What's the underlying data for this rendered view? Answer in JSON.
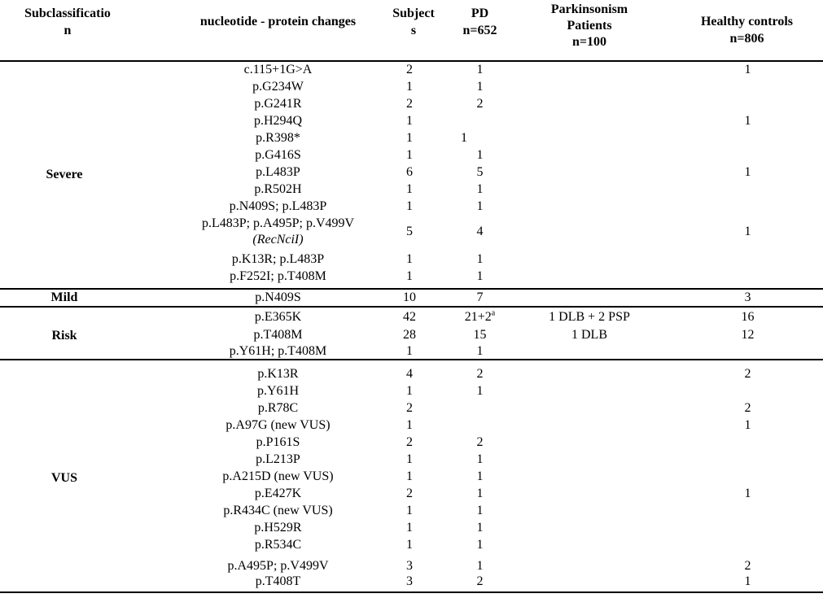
{
  "header": {
    "subclass": "Subclassificatio n",
    "subclass_l1": "Subclassificatio",
    "subclass_l2": "n",
    "mutation": "nucleotide - protein changes",
    "subjects_l1": "Subject",
    "subjects_l2": "s",
    "pd_l1": "PD",
    "pd_l2": "n=652",
    "park_l1": "Parkinsonism",
    "park_l2": "Patients",
    "park_l3": "n=100",
    "hc_l1": "Healthy controls",
    "hc_l2": "n=806"
  },
  "groups": {
    "severe": {
      "label": "Severe",
      "rows": [
        {
          "mutation": "c.115+1G>A",
          "subjects": "2",
          "pd": "1",
          "park": "",
          "hc": "1"
        },
        {
          "mutation": "p.G234W",
          "subjects": "1",
          "pd": "1",
          "park": "",
          "hc": ""
        },
        {
          "mutation": "p.G241R",
          "subjects": "2",
          "pd": "2",
          "park": "",
          "hc": ""
        },
        {
          "mutation": "p.H294Q",
          "subjects": "1",
          "pd": "",
          "park": "",
          "hc": "1"
        },
        {
          "mutation": "p.R398*",
          "subjects": "1",
          "pd": "1",
          "park": "",
          "hc": ""
        },
        {
          "mutation": "p.G416S",
          "subjects": "1",
          "pd": "1",
          "park": "",
          "hc": ""
        },
        {
          "mutation": "p.L483P",
          "subjects": "6",
          "pd": "5",
          "park": "",
          "hc": "1"
        },
        {
          "mutation": "p.R502H",
          "subjects": "1",
          "pd": "1",
          "park": "",
          "hc": ""
        },
        {
          "mutation": "p.N409S; p.L483P",
          "subjects": "1",
          "pd": "1",
          "park": "",
          "hc": ""
        },
        {
          "mutation_l1": "p.L483P; p.A495P; p.V499V",
          "mutation_l2": "(RecNciI)",
          "subjects": "5",
          "pd": "4",
          "park": "",
          "hc": "1"
        },
        {
          "mutation": "p.K13R; p.L483P",
          "subjects": "1",
          "pd": "1",
          "park": "",
          "hc": ""
        },
        {
          "mutation": "p.F252I; p.T408M",
          "subjects": "1",
          "pd": "1",
          "park": "",
          "hc": ""
        }
      ]
    },
    "mild": {
      "label": "Mild",
      "rows": [
        {
          "mutation": "p.N409S",
          "subjects": "10",
          "pd": "7",
          "park": "",
          "hc": "3"
        }
      ]
    },
    "risk": {
      "label": "Risk",
      "rows": [
        {
          "mutation": "p.E365K",
          "subjects": "42",
          "pd": "21+2",
          "pd_sup": "a",
          "park": "1 DLB + 2 PSP",
          "hc": "16"
        },
        {
          "mutation": "p.T408M",
          "subjects": "28",
          "pd": "15",
          "park": "1 DLB",
          "hc": "12"
        },
        {
          "mutation": "p.Y61H; p.T408M",
          "subjects": "1",
          "pd": "1",
          "park": "",
          "hc": ""
        }
      ]
    },
    "vus": {
      "label": "VUS",
      "rows": [
        {
          "mutation": "p.K13R",
          "subjects": "4",
          "pd": "2",
          "park": "",
          "hc": "2"
        },
        {
          "mutation": "p.Y61H",
          "subjects": "1",
          "pd": "1",
          "park": "",
          "hc": ""
        },
        {
          "mutation": "p.R78C",
          "subjects": "2",
          "pd": "",
          "park": "",
          "hc": "2"
        },
        {
          "mutation": "p.A97G (new VUS)",
          "subjects": "1",
          "pd": "",
          "park": "",
          "hc": "1"
        },
        {
          "mutation": "p.P161S",
          "subjects": "2",
          "pd": "2",
          "park": "",
          "hc": ""
        },
        {
          "mutation": "p.L213P",
          "subjects": "1",
          "pd": "1",
          "park": "",
          "hc": ""
        },
        {
          "mutation": "p.A215D (new VUS)",
          "subjects": "1",
          "pd": "1",
          "park": "",
          "hc": ""
        },
        {
          "mutation": "p.E427K",
          "subjects": "2",
          "pd": "1",
          "park": "",
          "hc": "1"
        },
        {
          "mutation": "p.R434C (new VUS)",
          "subjects": "1",
          "pd": "1",
          "park": "",
          "hc": ""
        },
        {
          "mutation": "p.H529R",
          "subjects": "1",
          "pd": "1",
          "park": "",
          "hc": ""
        },
        {
          "mutation": "p.R534C",
          "subjects": "1",
          "pd": "1",
          "park": "",
          "hc": ""
        },
        {
          "mutation": "p.A495P; p.V499V",
          "subjects": "3",
          "pd": "1",
          "park": "",
          "hc": "2"
        },
        {
          "mutation": "p.T408T",
          "subjects": "3",
          "pd": "2",
          "park": "",
          "hc": "1"
        }
      ]
    }
  }
}
